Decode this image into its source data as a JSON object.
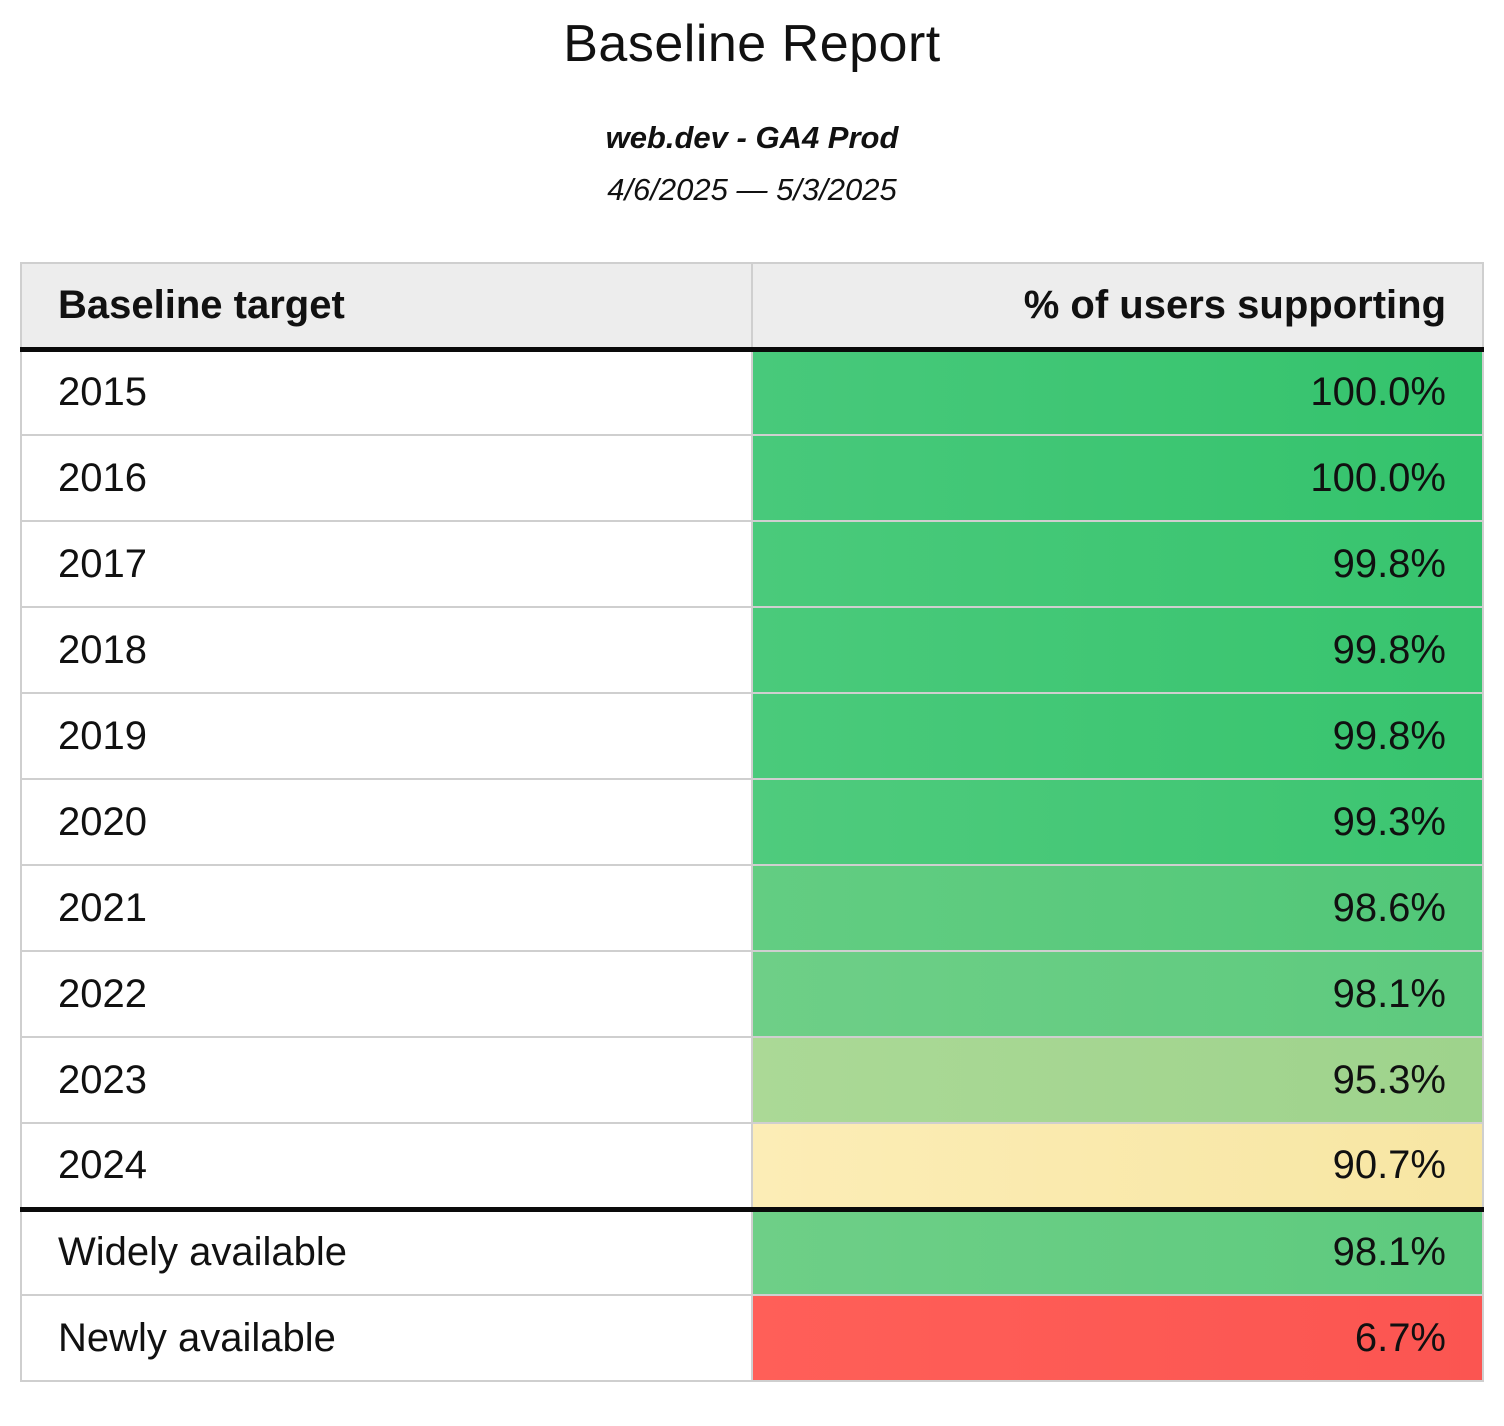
{
  "header": {
    "title": "Baseline Report",
    "source": "web.dev - GA4 Prod",
    "date_range": "4/6/2025 — 5/3/2025"
  },
  "table": {
    "columns": [
      "Baseline target",
      "% of users supporting"
    ],
    "rows": [
      {
        "target": "2015",
        "value": "100.0%",
        "section": "year",
        "color_left": "#48c97b",
        "color_right": "#34c36c"
      },
      {
        "target": "2016",
        "value": "100.0%",
        "section": "year",
        "color_left": "#48c97b",
        "color_right": "#34c36c"
      },
      {
        "target": "2017",
        "value": "99.8%",
        "section": "year",
        "color_left": "#4aca7b",
        "color_right": "#37c46e"
      },
      {
        "target": "2018",
        "value": "99.8%",
        "section": "year",
        "color_left": "#4aca7b",
        "color_right": "#37c46e"
      },
      {
        "target": "2019",
        "value": "99.8%",
        "section": "year",
        "color_left": "#4aca7b",
        "color_right": "#37c46e"
      },
      {
        "target": "2020",
        "value": "99.3%",
        "section": "year",
        "color_left": "#4fcb7d",
        "color_right": "#3cc571"
      },
      {
        "target": "2021",
        "value": "98.6%",
        "section": "year",
        "color_left": "#63cd82",
        "color_right": "#51c778"
      },
      {
        "target": "2022",
        "value": "98.1%",
        "section": "year",
        "color_left": "#6ecf87",
        "color_right": "#5dca7e"
      },
      {
        "target": "2023",
        "value": "95.3%",
        "section": "year",
        "color_left": "#abd996",
        "color_right": "#9ed38c"
      },
      {
        "target": "2024",
        "value": "90.7%",
        "section": "year",
        "color_left": "#fcedb6",
        "color_right": "#f7e6a3"
      },
      {
        "target": "Widely available",
        "value": "98.1%",
        "section": "summary",
        "color_left": "#6ecf87",
        "color_right": "#5dca7e"
      },
      {
        "target": "Newly available",
        "value": "6.7%",
        "section": "summary",
        "color_left": "#ff5f58",
        "color_right": "#fb5551"
      }
    ]
  },
  "chart_data": {
    "type": "table",
    "title": "Baseline Report",
    "subtitle": "web.dev - GA4 Prod",
    "date_range": "4/6/2025 — 5/3/2025",
    "columns": [
      "Baseline target",
      "% of users supporting"
    ],
    "categories": [
      "2015",
      "2016",
      "2017",
      "2018",
      "2019",
      "2020",
      "2021",
      "2022",
      "2023",
      "2024",
      "Widely available",
      "Newly available"
    ],
    "values": [
      100.0,
      100.0,
      99.8,
      99.8,
      99.8,
      99.3,
      98.6,
      98.1,
      95.3,
      90.7,
      98.1,
      6.7
    ],
    "value_unit": "%",
    "layout_hints": {
      "value_cell_coloring": "heatmap from red (low) through yellow to green (high)",
      "heatmap_colors": {
        "high_green": "#34c36c",
        "mid_yellow": "#f7e6a3",
        "low_red": "#fb5551"
      },
      "thick_black_rule_below": [
        "header",
        "2024"
      ]
    }
  }
}
